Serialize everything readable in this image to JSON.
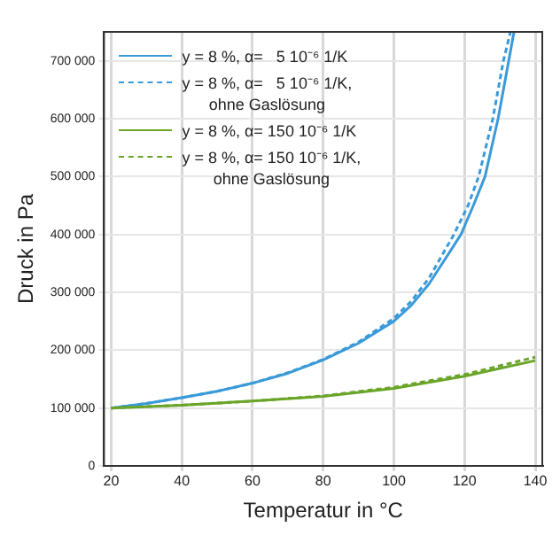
{
  "chart_data": {
    "type": "line",
    "xlabel": "Temperatur in °C",
    "ylabel": "Druck in Pa",
    "xlim": [
      18,
      142
    ],
    "xticks": [
      20,
      40,
      60,
      80,
      100,
      120,
      140
    ],
    "ylim": [
      0,
      750000
    ],
    "yticks": [
      0,
      {
        "value": 100000,
        "label": "100 000"
      },
      {
        "value": 200000,
        "label": "200 000"
      },
      {
        "value": 300000,
        "label": "300 000"
      },
      {
        "value": 400000,
        "label": "400 000"
      },
      {
        "value": 500000,
        "label": "500 000"
      },
      {
        "value": 600000,
        "label": "600 000"
      },
      {
        "value": 700000,
        "label": "700 000"
      }
    ],
    "grid": true,
    "legend": "top left",
    "marker": "none",
    "series": [
      {
        "name": "y = 8 %, α=   5 10⁻⁶ 1/K",
        "color": "#3a9ad9",
        "line_style": "solid",
        "x": [
          20,
          30,
          40,
          50,
          60,
          70,
          80,
          90,
          100,
          105,
          110,
          115,
          119,
          122.5,
          125.8,
          129.5,
          132.5,
          134
        ],
        "values": [
          100000,
          108000,
          118000,
          129000,
          143000,
          160000,
          183000,
          212000,
          250000,
          278000,
          315000,
          362000,
          400000,
          450000,
          500000,
          600000,
          700000,
          750000
        ]
      },
      {
        "name": "y = 8 %, α=   5 10⁻⁶ 1/K,\nohne Gaslösung",
        "color": "#3a9ad9",
        "line_style": "dashed",
        "x": [
          20,
          30,
          40,
          50,
          60,
          70,
          80,
          90,
          100,
          105,
          110,
          117,
          121,
          124,
          128,
          131,
          133
        ],
        "values": [
          100000,
          108000,
          118000,
          129000,
          143000,
          161000,
          184000,
          214000,
          255000,
          285000,
          325000,
          400000,
          450000,
          500000,
          600000,
          700000,
          750000
        ]
      },
      {
        "name": "y = 8 %, α= 150 10⁻⁶ 1/K",
        "color": "#6aa52a",
        "line_style": "solid",
        "x": [
          20,
          40,
          60,
          80,
          100,
          120,
          140
        ],
        "values": [
          100000,
          105000,
          112000,
          120000,
          134000,
          155000,
          182000
        ]
      },
      {
        "name": "y = 8 %, α= 150 10⁻⁶ 1/K,\nohne Gaslösung",
        "color": "#6aa52a",
        "line_style": "dashed",
        "x": [
          20,
          40,
          60,
          80,
          100,
          120,
          140
        ],
        "values": [
          100000,
          105000,
          112000,
          121000,
          136000,
          158000,
          188000
        ]
      }
    ]
  }
}
